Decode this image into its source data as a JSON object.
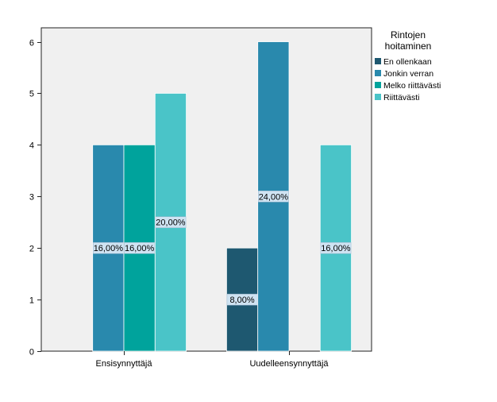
{
  "chart_data": {
    "type": "bar",
    "categories": [
      "Ensisynnyttäjä",
      "Uudelleensynnyttäjä"
    ],
    "series": [
      {
        "name": "En ollenkaan",
        "color": "#1e5870",
        "values": [
          0,
          2
        ],
        "labels": [
          "",
          "8,00%"
        ]
      },
      {
        "name": "Jonkin verran",
        "color": "#2989ad",
        "values": [
          4,
          6
        ],
        "labels": [
          "16,00%",
          "24,00%"
        ]
      },
      {
        "name": "Melko riittävästi",
        "color": "#00a39c",
        "values": [
          4,
          0
        ],
        "labels": [
          "16,00%",
          ""
        ]
      },
      {
        "name": "Riittävästi",
        "color": "#4ac4c8",
        "values": [
          5,
          4
        ],
        "labels": [
          "20,00%",
          "16,00%"
        ]
      }
    ],
    "ylim": [
      0,
      6
    ],
    "yticks": [
      0,
      1,
      2,
      3,
      4,
      5,
      6
    ],
    "xlabel": "",
    "ylabel": "",
    "legend": {
      "title": "Rintojen hoitaminen",
      "title_lines": [
        "Rintojen",
        "hoitaminen"
      ],
      "placement": "right"
    },
    "grid": false,
    "plot_background": "#f0f0f0"
  }
}
